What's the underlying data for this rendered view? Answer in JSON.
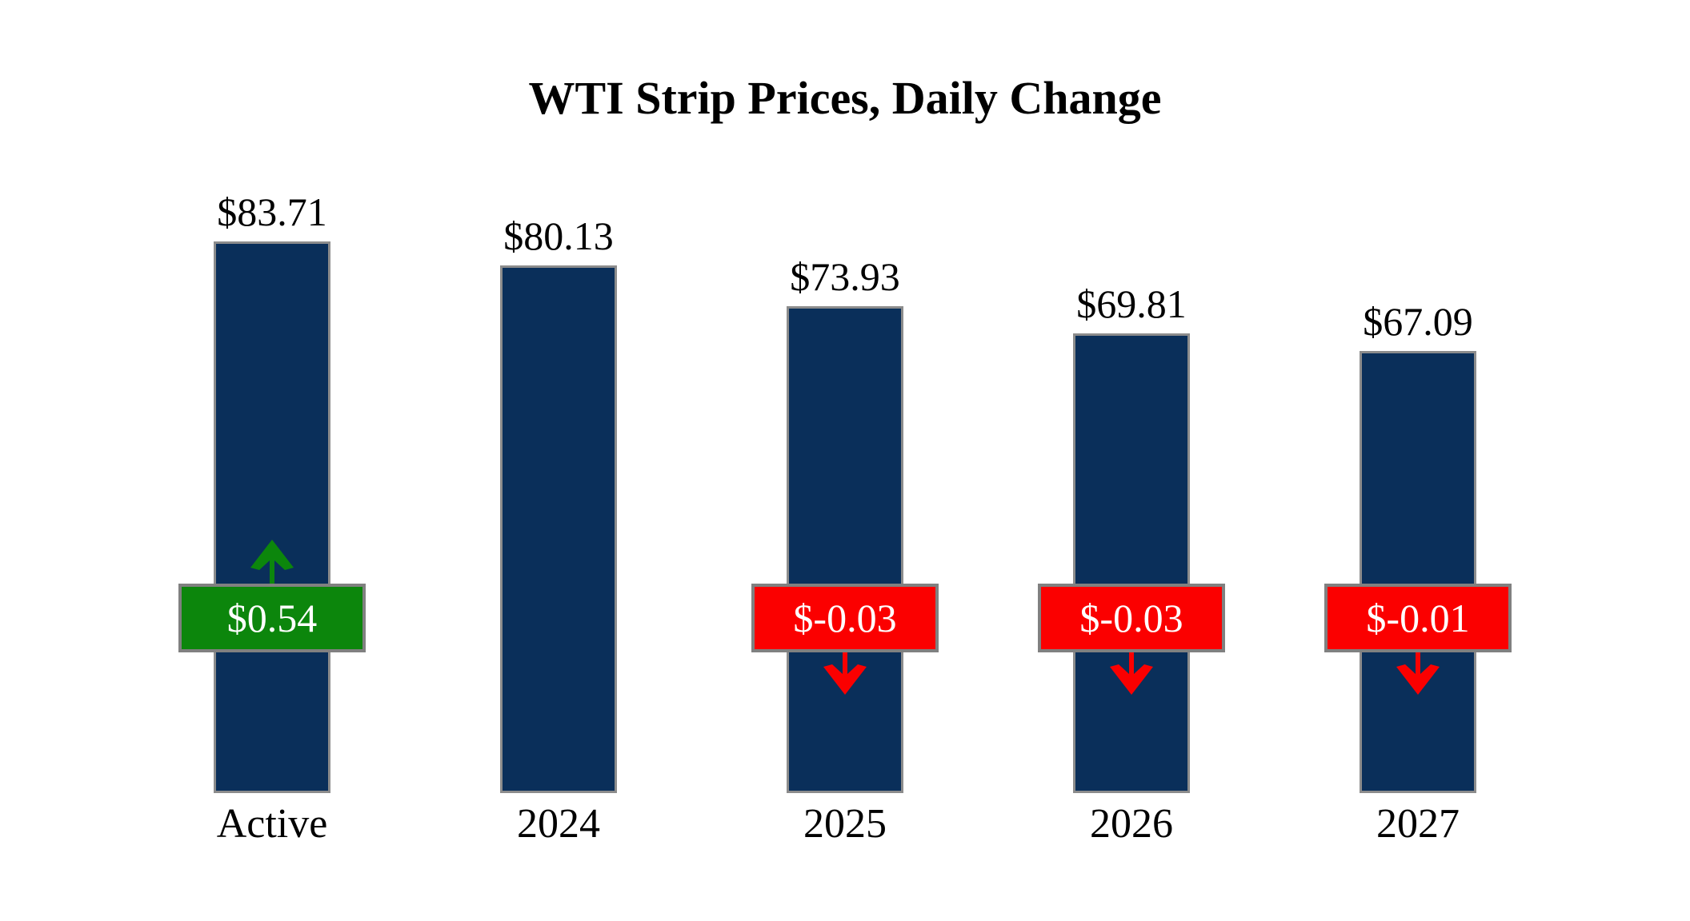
{
  "title": "WTI Strip Prices, Daily Change",
  "chart_data": {
    "type": "bar",
    "title": "WTI Strip Prices, Daily Change",
    "xlabel": "",
    "ylabel": "",
    "categories": [
      "Active",
      "2024",
      "2025",
      "2026",
      "2027"
    ],
    "values": [
      83.71,
      80.13,
      73.93,
      69.81,
      67.09
    ],
    "value_labels": [
      "$83.71",
      "$80.13",
      "$73.93",
      "$69.81",
      "$67.09"
    ],
    "daily_changes": [
      0.54,
      null,
      -0.03,
      -0.03,
      -0.01
    ],
    "change_labels": [
      "$0.54",
      null,
      "$-0.03",
      "$-0.03",
      "$-0.01"
    ],
    "change_directions": [
      "up",
      null,
      "down",
      "down",
      "down"
    ],
    "ylim": [
      0,
      90
    ],
    "baseline": 0,
    "grid": false,
    "legend": "none"
  },
  "colors": {
    "background": "#FFFFFF",
    "text": "#000000",
    "bar_navy": "#0A2F5A",
    "bar_border": "#8C8C8C",
    "badge_border": "#808080",
    "up_green": "#0C860C",
    "down_red": "#FB0000",
    "badge_text": "#FFFFFF"
  }
}
